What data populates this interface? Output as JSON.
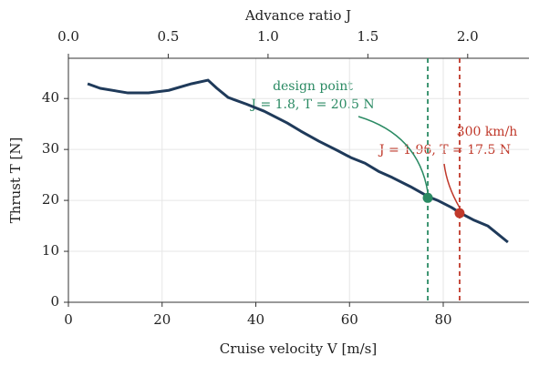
{
  "chart_data": {
    "type": "line",
    "xlabel": "Cruise velocity  V  [m/s]",
    "ylabel": "Thrust  T  [N]",
    "x2label": "Advance ratio  J",
    "xlim": [
      0,
      98.3
    ],
    "xticks": [
      0,
      20,
      40,
      60,
      80
    ],
    "ylim": [
      0,
      47.9
    ],
    "yticks": [
      0,
      10,
      20,
      30,
      40
    ],
    "x2lim": [
      0,
      2.307
    ],
    "x2ticks": [
      {
        "value": 0,
        "label": "0.0"
      },
      {
        "value": 0.5,
        "label": "0.5"
      },
      {
        "value": 1,
        "label": "1.0"
      },
      {
        "value": 1.5,
        "label": "1.5"
      },
      {
        "value": 2,
        "label": "2.0"
      }
    ],
    "grid": true,
    "series": [
      {
        "color": "#1f3a5a",
        "x": [
          4.1,
          6.8,
          12.7,
          17.1,
          21.4,
          26.3,
          29.8,
          31.7,
          34.1,
          38,
          41.8,
          46.7,
          49.6,
          53.5,
          57.4,
          60.3,
          63.3,
          66.2,
          69.1,
          73,
          76.9,
          78.8,
          81.8,
          83.7,
          86.6,
          89.5,
          93.8
        ],
        "values": [
          42.9,
          42.0,
          41.1,
          41.1,
          41.6,
          42.9,
          43.6,
          42,
          40.2,
          38.9,
          37.5,
          35.2,
          33.6,
          31.6,
          29.8,
          28.4,
          27.3,
          25.7,
          24.5,
          22.7,
          20.7,
          20,
          18.6,
          17.5,
          16.1,
          15,
          11.8
        ]
      }
    ],
    "annotations": [
      {
        "x": 76.7,
        "y": 20.5,
        "color": "#2a8a63",
        "text": [
          "design point",
          "J = 1.8,  T = 20.5 N"
        ]
      },
      {
        "x": 83.5,
        "y": 17.5,
        "color": "#c0392b",
        "text": [
          "300 km/h",
          "J = 1.96,  T = 17.5 N"
        ]
      }
    ]
  }
}
